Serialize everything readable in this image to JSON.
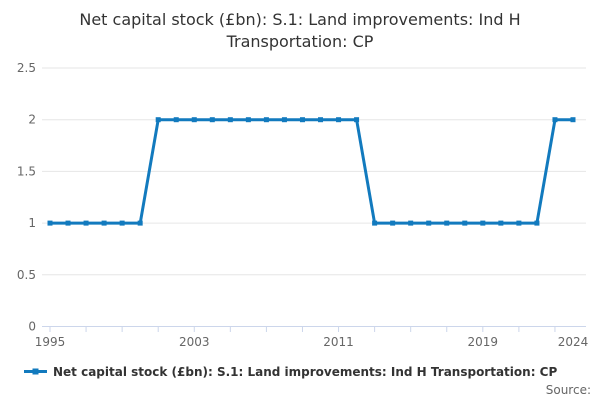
{
  "title": {
    "line1": "Net capital stock (£bn): S.1: Land improvements: Ind H",
    "line2": "Transportation: CP"
  },
  "legend": {
    "label": "Net capital stock (£bn): S.1: Land improvements: Ind H Transportation: CP"
  },
  "source_label": "Source:",
  "colors": {
    "series": "#127abe",
    "gridline": "#e6e6e6",
    "axis_line": "#ccd6eb",
    "tick_mark": "#ccd6eb",
    "axis_label": "#666666",
    "title_text": "#333333"
  },
  "chart_data": {
    "type": "line",
    "title": "Net capital stock (£bn): S.1: Land improvements: Ind H Transportation: CP",
    "xlabel": "",
    "ylabel": "",
    "ylim": [
      0,
      2.5
    ],
    "yticks": [
      0,
      0.5,
      1,
      1.5,
      2,
      2.5
    ],
    "ytick_labels": [
      "0",
      "0.5",
      "1",
      "1.5",
      "2",
      "2.5"
    ],
    "xtick_marks": [
      1995,
      1997,
      1999,
      2001,
      2003,
      2005,
      2007,
      2009,
      2011,
      2013,
      2015,
      2017,
      2019,
      2021,
      2023
    ],
    "xtick_labels": [
      1995,
      2003,
      2011,
      2019,
      2024
    ],
    "grid": true,
    "legend_position": "bottom-left",
    "series": [
      {
        "name": "Net capital stock (£bn): S.1: Land improvements: Ind H Transportation: CP",
        "x": [
          1995,
          1996,
          1997,
          1998,
          1999,
          2000,
          2001,
          2002,
          2003,
          2004,
          2005,
          2006,
          2007,
          2008,
          2009,
          2010,
          2011,
          2012,
          2013,
          2014,
          2015,
          2016,
          2017,
          2018,
          2019,
          2020,
          2021,
          2022,
          2023,
          2024
        ],
        "values": [
          1,
          1,
          1,
          1,
          1,
          1,
          2,
          2,
          2,
          2,
          2,
          2,
          2,
          2,
          2,
          2,
          2,
          2,
          1,
          1,
          1,
          1,
          1,
          1,
          1,
          1,
          1,
          1,
          2,
          2
        ]
      }
    ]
  }
}
